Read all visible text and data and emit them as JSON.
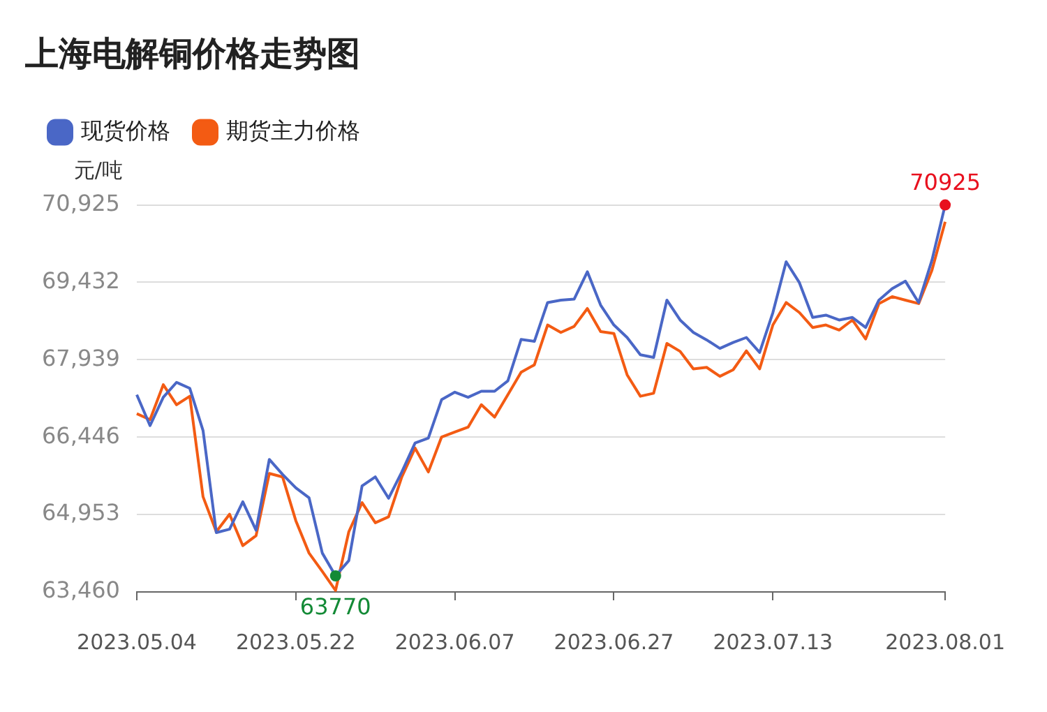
{
  "chart_data": {
    "type": "line",
    "title": "上海电解铜价格走势图",
    "ylabel": "元/吨",
    "categories": [
      "2023.05.04",
      null,
      null,
      null,
      null,
      null,
      null,
      null,
      null,
      null,
      null,
      null,
      "2023.05.22",
      null,
      null,
      null,
      null,
      null,
      null,
      null,
      null,
      null,
      null,
      null,
      "2023.06.07",
      null,
      null,
      null,
      null,
      null,
      null,
      null,
      null,
      null,
      null,
      null,
      "2023.06.27",
      null,
      null,
      null,
      null,
      null,
      null,
      null,
      null,
      null,
      null,
      null,
      "2023.07.13",
      null,
      null,
      null,
      null,
      null,
      null,
      null,
      null,
      null,
      null,
      null,
      null,
      "2023.08.01"
    ],
    "series": [
      {
        "name": "现货价格",
        "color": "#4a67c6",
        "values": [
          67264,
          66668,
          67215,
          67503,
          67388,
          66573,
          64604,
          64670,
          65198,
          64650,
          66016,
          65728,
          65469,
          65276,
          64209,
          63770,
          64065,
          65506,
          65679,
          65267,
          65774,
          66333,
          66428,
          67169,
          67313,
          67215,
          67331,
          67331,
          67532,
          68331,
          68293,
          69042,
          69089,
          69107,
          69636,
          68993,
          68610,
          68368,
          68034,
          67985,
          69089,
          68705,
          68466,
          68322,
          68158,
          68273,
          68368,
          68080,
          68849,
          69829,
          69426,
          68754,
          68800,
          68705,
          68754,
          68561,
          69089,
          69310,
          69454,
          69042,
          69858,
          70925
        ]
      },
      {
        "name": "期货主力价格",
        "color": "#f35b13",
        "values": [
          66898,
          66783,
          67457,
          67071,
          67235,
          65296,
          64621,
          64959,
          64353,
          64546,
          65745,
          65679,
          64835,
          64209,
          63855,
          63489,
          64621,
          65181,
          64794,
          64910,
          65679,
          66235,
          65774,
          66449,
          66544,
          66639,
          67071,
          66832,
          67264,
          67697,
          67841,
          68610,
          68466,
          68581,
          68927,
          68483,
          68446,
          67648,
          67235,
          67293,
          68253,
          68100,
          67763,
          67792,
          67619,
          67745,
          68109,
          67763,
          68610,
          69042,
          68849,
          68561,
          68610,
          68512,
          68705,
          68339,
          69022,
          69157,
          69089,
          69022,
          69665,
          70599
        ]
      }
    ],
    "ylim": [
      63460,
      70925
    ],
    "yticks": [
      {
        "value": 63460,
        "label": "63,460"
      },
      {
        "value": 64953,
        "label": "64,953"
      },
      {
        "value": 66446,
        "label": "66,446"
      },
      {
        "value": 67939,
        "label": "67,939"
      },
      {
        "value": 69432,
        "label": "69,432"
      },
      {
        "value": 70925,
        "label": "70,925"
      }
    ],
    "grid": "y",
    "legend": "top left",
    "marker": "none",
    "line_style": "solid",
    "annotations": [
      {
        "text": "70925",
        "y": 70925
      },
      {
        "text": "63770",
        "y": 63770
      }
    ]
  }
}
